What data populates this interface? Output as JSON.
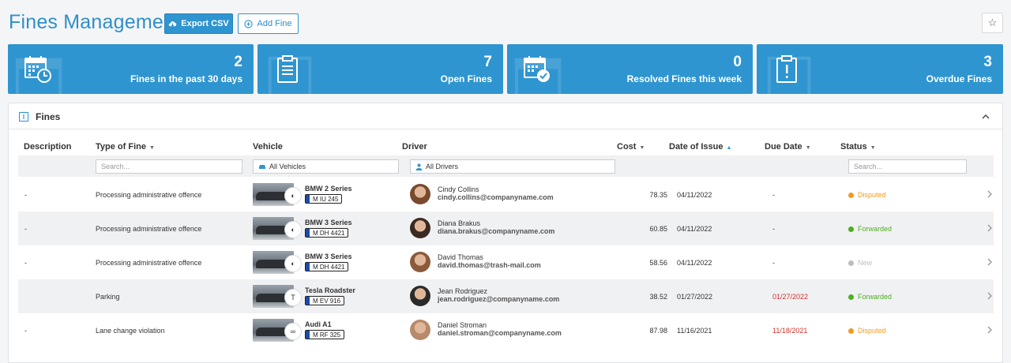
{
  "header": {
    "title": "Fines Management",
    "export_label": "Export CSV",
    "add_label": "Add Fine",
    "star_icon": "star-icon"
  },
  "colors": {
    "accent": "#2f95d0",
    "disputed": "#f39a1e",
    "forwarded": "#4caf1e",
    "new": "#bdbdbd",
    "overdue_date": "#d0322b"
  },
  "cards": [
    {
      "value": "2",
      "label": "Fines in the past 30 days",
      "icon": "calendar-clock-icon"
    },
    {
      "value": "7",
      "label": "Open Fines",
      "icon": "clipboard-icon"
    },
    {
      "value": "0",
      "label": "Resolved Fines this week",
      "icon": "calendar-check-icon"
    },
    {
      "value": "3",
      "label": "Overdue Fines",
      "icon": "alert-clipboard-icon"
    }
  ],
  "panel": {
    "title": "Fines"
  },
  "columns": {
    "description": "Description",
    "type": "Type of Fine",
    "vehicle": "Vehicle",
    "driver": "Driver",
    "cost": "Cost",
    "date_of_issue": "Date of Issue",
    "due_date": "Due Date",
    "status": "Status"
  },
  "filters": {
    "type_placeholder": "Search...",
    "vehicle_value": "All Vehicles",
    "driver_value": "All Drivers",
    "status_placeholder": "Search..."
  },
  "rows": [
    {
      "description": "-",
      "type": "Processing administrative offence",
      "vehicle": "BMW 2 Series",
      "plate": "M IU 245",
      "brand": "bmw",
      "driver": "Cindy Collins",
      "email": "cindy.collins@companyname.com",
      "cost": "78.35",
      "date_of_issue": "04/11/2022",
      "due_date": "-",
      "due_overdue": false,
      "status": "Disputed"
    },
    {
      "description": "-",
      "type": "Processing administrative offence",
      "vehicle": "BMW 3 Series",
      "plate": "M DH 4421",
      "brand": "bmw",
      "driver": "Diana Brakus",
      "email": "diana.brakus@companyname.com",
      "cost": "60.85",
      "date_of_issue": "04/11/2022",
      "due_date": "-",
      "due_overdue": false,
      "status": "Forwarded"
    },
    {
      "description": "-",
      "type": "Processing administrative offence",
      "vehicle": "BMW 3 Series",
      "plate": "M DH 4421",
      "brand": "bmw",
      "driver": "David Thomas",
      "email": "david.thomas@trash-mail.com",
      "cost": "58.56",
      "date_of_issue": "04/11/2022",
      "due_date": "-",
      "due_overdue": false,
      "status": "New"
    },
    {
      "description": "",
      "type": "Parking",
      "vehicle": "Tesla Roadster",
      "plate": "M EV 916",
      "brand": "tesla",
      "driver": "Jean Rodriguez",
      "email": "jean.rodriguez@companyname.com",
      "cost": "38.52",
      "date_of_issue": "01/27/2022",
      "due_date": "01/27/2022",
      "due_overdue": true,
      "status": "Forwarded"
    },
    {
      "description": "-",
      "type": "Lane change violation",
      "vehicle": "Audi A1",
      "plate": "M RF 325",
      "brand": "audi",
      "driver": "Daniel Stroman",
      "email": "daniel.stroman@companyname.com",
      "cost": "87.98",
      "date_of_issue": "11/16/2021",
      "due_date": "11/18/2021",
      "due_overdue": true,
      "status": "Disputed"
    }
  ]
}
